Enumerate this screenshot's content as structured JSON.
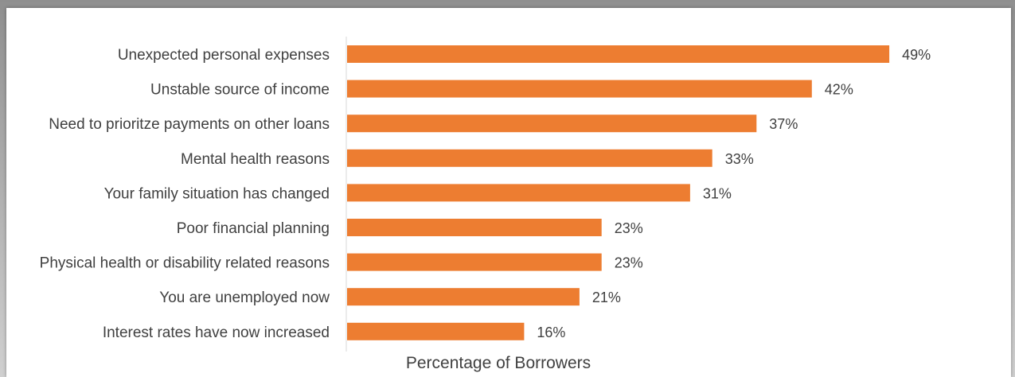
{
  "chart_data": {
    "type": "bar",
    "orientation": "horizontal",
    "categories": [
      "Unexpected personal expenses",
      "Unstable source of income",
      "Need to prioritze payments on other loans",
      "Mental health reasons",
      "Your family situation has changed",
      "Poor financial planning",
      "Physical health or disability related reasons",
      "You are unemployed now",
      "Interest rates have now increased"
    ],
    "values": [
      49,
      42,
      37,
      33,
      31,
      23,
      23,
      21,
      16
    ],
    "value_labels": [
      "49%",
      "42%",
      "37%",
      "33%",
      "31%",
      "23%",
      "23%",
      "21%",
      "16%"
    ],
    "xlabel": "Percentage of Borrowers",
    "ylabel": "",
    "grid": false,
    "legend": "none",
    "bar_color": "#ed7d31"
  }
}
